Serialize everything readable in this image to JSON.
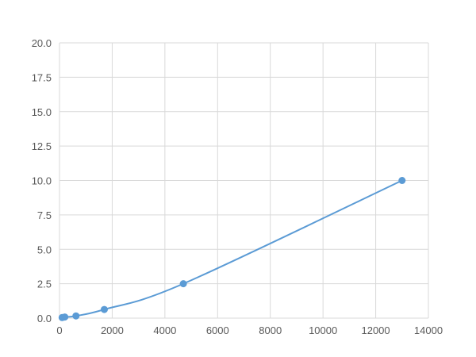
{
  "chart_data": {
    "type": "line",
    "title": "",
    "xlabel": "",
    "ylabel": "",
    "xlim": [
      0,
      14000
    ],
    "ylim": [
      0,
      20
    ],
    "xticks": [
      "0",
      "2000",
      "4000",
      "6000",
      "8000",
      "10000",
      "12000",
      "14000"
    ],
    "yticks": [
      "0.0",
      "2.5",
      "5.0",
      "7.5",
      "10.0",
      "12.5",
      "15.0",
      "17.5",
      "20.0"
    ],
    "grid": true,
    "legend": "none",
    "series": [
      {
        "x": [
          100,
          200,
          625,
          1700,
          4700,
          13000
        ],
        "y": [
          0.04,
          0.08,
          0.16,
          0.63,
          2.5,
          10.0
        ],
        "color": "#5b9bd5",
        "smooth": true,
        "markers": true
      }
    ]
  }
}
